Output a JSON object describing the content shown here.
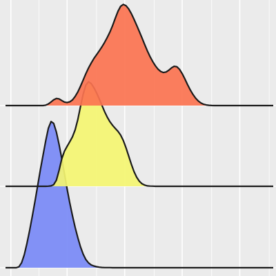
{
  "chart_data": {
    "type": "ridgeline",
    "grid": true,
    "legend": "none",
    "background_color": "#ebebeb",
    "grid_color": "#ffffff",
    "outline_color": "#1a1a1a",
    "xlim": [
      0,
      1
    ],
    "x": [
      0,
      0.01,
      0.02,
      0.03,
      0.04,
      0.05,
      0.06,
      0.07,
      0.08,
      0.09,
      0.1,
      0.11,
      0.12,
      0.13,
      0.14,
      0.15,
      0.16,
      0.17,
      0.18,
      0.19,
      0.2,
      0.21,
      0.22,
      0.23,
      0.24,
      0.25,
      0.26,
      0.27,
      0.28,
      0.29,
      0.3,
      0.31,
      0.32,
      0.33,
      0.34,
      0.35,
      0.36,
      0.37,
      0.38,
      0.39,
      0.4,
      0.41,
      0.42,
      0.43,
      0.44,
      0.45,
      0.46,
      0.47,
      0.48,
      0.49,
      0.5,
      0.51,
      0.52,
      0.53,
      0.54,
      0.55,
      0.56,
      0.57,
      0.58,
      0.59,
      0.6,
      0.61,
      0.62,
      0.63,
      0.64,
      0.65,
      0.66,
      0.67,
      0.68,
      0.69,
      0.7,
      0.71,
      0.72,
      0.73,
      0.74,
      0.75,
      0.76,
      0.77,
      0.78,
      0.79,
      0.8,
      0.81,
      0.82,
      0.83,
      0.84,
      0.85,
      0.86,
      0.87,
      0.88,
      0.89,
      0.9,
      0.91,
      0.92,
      0.93,
      0.94,
      0.95,
      0.96,
      0.97,
      0.98,
      0.99,
      1
    ],
    "series": [
      {
        "color": "#7889f6",
        "values": [
          0.0,
          0.0,
          0.0,
          0.0,
          0.0,
          0.006,
          0.034,
          0.089,
          0.165,
          0.254,
          0.352,
          0.454,
          0.561,
          0.667,
          0.767,
          0.866,
          0.954,
          0.999,
          0.987,
          0.928,
          0.843,
          0.746,
          0.643,
          0.54,
          0.444,
          0.356,
          0.276,
          0.205,
          0.144,
          0.093,
          0.056,
          0.033,
          0.019,
          0.012,
          0.007,
          0.004,
          0.002,
          0.001,
          0.001,
          0.001,
          0.0,
          0.0,
          0.0,
          0.0,
          0.0,
          0.0,
          0.0,
          0.0,
          0.0,
          0.0,
          0.0,
          0.0,
          0.0,
          0.0,
          0.0,
          0.0,
          0.0,
          0.0,
          0.0,
          0.0,
          0.0,
          0.0,
          0.0,
          0.0,
          0.0,
          0.0,
          0.0,
          0.0,
          0.0,
          0.0,
          0.0,
          0.0,
          0.0,
          0.0,
          0.0,
          0.0,
          0.0,
          0.0,
          0.0,
          0.0,
          0.0,
          0.0,
          0.0,
          0.0,
          0.0,
          0.0,
          0.0,
          0.0,
          0.0,
          0.0,
          0.0,
          0.0,
          0.0,
          0.0,
          0.0,
          0.0,
          0.0,
          0.0,
          0.0,
          0.0,
          0.0
        ]
      },
      {
        "color": "#f4f571",
        "values": [
          0.0,
          0.0,
          0.0,
          0.0,
          0.0,
          0.0,
          0.0,
          0.0,
          0.0,
          0.0,
          0.0,
          0.0,
          0.0,
          0.0,
          0.0,
          0.0,
          0.001,
          0.004,
          0.016,
          0.058,
          0.151,
          0.262,
          0.335,
          0.38,
          0.425,
          0.472,
          0.538,
          0.637,
          0.759,
          0.877,
          0.965,
          0.997,
          0.979,
          0.941,
          0.892,
          0.834,
          0.773,
          0.712,
          0.66,
          0.616,
          0.581,
          0.552,
          0.524,
          0.488,
          0.437,
          0.368,
          0.289,
          0.21,
          0.141,
          0.086,
          0.048,
          0.024,
          0.011,
          0.004,
          0.002,
          0.001,
          0.0,
          0.0,
          0.0,
          0.0,
          0.0,
          0.0,
          0.0,
          0.0,
          0.0,
          0.0,
          0.0,
          0.0,
          0.0,
          0.0,
          0.0,
          0.0,
          0.0,
          0.0,
          0.0,
          0.0,
          0.0,
          0.0,
          0.0,
          0.0,
          0.0,
          0.0,
          0.0,
          0.0,
          0.0,
          0.0,
          0.0,
          0.0,
          0.0,
          0.0,
          0.0,
          0.0,
          0.0,
          0.0,
          0.0,
          0.0,
          0.0,
          0.0,
          0.0,
          0.0,
          0.0
        ]
      },
      {
        "color": "#fb7350",
        "values": [
          0.0,
          0.0,
          0.0,
          0.0,
          0.0,
          0.0,
          0.0,
          0.0,
          0.0,
          0.0,
          0.0,
          0.0,
          0.0,
          0.0,
          0.0,
          0.004,
          0.016,
          0.036,
          0.057,
          0.07,
          0.066,
          0.05,
          0.035,
          0.03,
          0.037,
          0.056,
          0.09,
          0.135,
          0.19,
          0.252,
          0.314,
          0.371,
          0.42,
          0.463,
          0.501,
          0.539,
          0.579,
          0.623,
          0.671,
          0.725,
          0.789,
          0.861,
          0.93,
          0.978,
          0.997,
          0.985,
          0.953,
          0.906,
          0.851,
          0.791,
          0.729,
          0.665,
          0.6,
          0.539,
          0.482,
          0.433,
          0.391,
          0.358,
          0.336,
          0.326,
          0.331,
          0.349,
          0.372,
          0.387,
          0.383,
          0.357,
          0.314,
          0.262,
          0.207,
          0.155,
          0.11,
          0.073,
          0.045,
          0.026,
          0.013,
          0.006,
          0.003,
          0.001,
          0.0,
          0.0,
          0.0,
          0.0,
          0.0,
          0.0,
          0.0,
          0.0,
          0.0,
          0.0,
          0.0,
          0.0,
          0.0,
          0.0,
          0.0,
          0.0,
          0.0,
          0.0,
          0.0,
          0.0,
          0.0,
          0.0,
          0.0
        ]
      }
    ]
  }
}
